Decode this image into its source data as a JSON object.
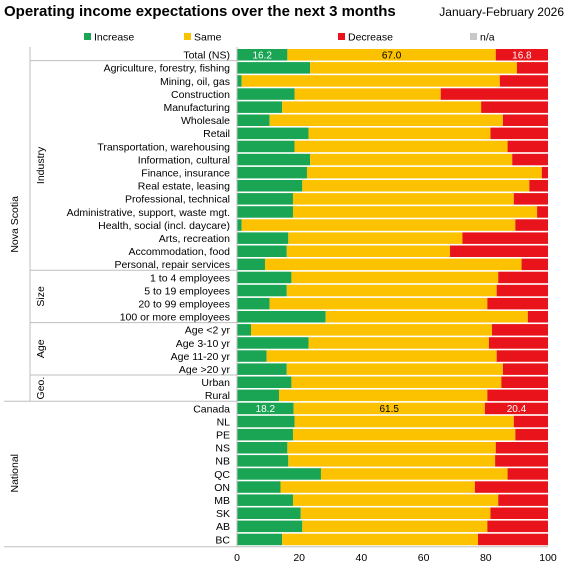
{
  "header": {
    "title": "Operating income expectations over the next 3 months",
    "period": "January-February  2026"
  },
  "chart_data": {
    "type": "bar",
    "orientation": "horizontal",
    "stacked": true,
    "xlim": [
      0,
      100
    ],
    "xticks": [
      "0",
      "20",
      "40",
      "60",
      "80",
      "100"
    ],
    "legend_position": "top",
    "colors": {
      "Increase": "#1aa555",
      "Same": "#fcc200",
      "Decrease": "#e8131b",
      "n/a": "#c8c8c8"
    },
    "legend": [
      {
        "name": "Increase",
        "color": "#1aa555"
      },
      {
        "name": "Same",
        "color": "#fcc200"
      },
      {
        "name": "Decrease",
        "color": "#e8131b"
      },
      {
        "name": "n/a",
        "color": "#c8c8c8"
      }
    ],
    "groups": [
      {
        "outer": "Nova Scotia",
        "inner": "",
        "from": 0,
        "to": 17
      },
      {
        "outer": "Nova Scotia",
        "inner": "Industry",
        "from": 1,
        "to": 17
      },
      {
        "outer": "Nova Scotia",
        "inner": "Size",
        "from": 17,
        "to": 21
      },
      {
        "outer": "Nova Scotia",
        "inner": "Age",
        "from": 21,
        "to": 25
      },
      {
        "outer": "Nova Scotia",
        "inner": "Geo.",
        "from": 25,
        "to": 27
      },
      {
        "outer": "National",
        "inner": "",
        "from": 27,
        "to": 38
      }
    ],
    "outer_groups": [
      {
        "name": "Nova Scotia",
        "from": 0,
        "to": 27
      },
      {
        "name": "National",
        "from": 27,
        "to": 38
      }
    ],
    "inner_groups": [
      {
        "name": "Industry",
        "from": 1,
        "to": 17
      },
      {
        "name": "Size",
        "from": 17,
        "to": 21
      },
      {
        "name": "Age",
        "from": 21,
        "to": 25
      },
      {
        "name": "Geo.",
        "from": 25,
        "to": 27
      }
    ],
    "rows": [
      {
        "label": "Total (NS)",
        "increase": 16.2,
        "same": 67.0,
        "decrease": 16.8,
        "labels": [
          "16.2",
          "67.0",
          "16.8"
        ]
      },
      {
        "label": "Agriculture, forestry, fishing",
        "increase": 23.5,
        "same": 66.5,
        "decrease": 10.0
      },
      {
        "label": "Mining, oil, gas",
        "increase": 1.5,
        "same": 83.0,
        "decrease": 15.5
      },
      {
        "label": "Construction",
        "increase": 18.5,
        "same": 47.0,
        "decrease": 34.5
      },
      {
        "label": "Manufacturing",
        "increase": 14.5,
        "same": 64.0,
        "decrease": 21.5
      },
      {
        "label": "Wholesale",
        "increase": 10.5,
        "same": 75.0,
        "decrease": 14.5
      },
      {
        "label": "Retail",
        "increase": 23.0,
        "same": 58.5,
        "decrease": 18.5
      },
      {
        "label": "Transportation, warehousing",
        "increase": 18.5,
        "same": 68.5,
        "decrease": 13.0
      },
      {
        "label": "Information, cultural",
        "increase": 23.5,
        "same": 65.0,
        "decrease": 11.5
      },
      {
        "label": "Finance, insurance",
        "increase": 22.5,
        "same": 75.5,
        "decrease": 2.0
      },
      {
        "label": "Real estate, leasing",
        "increase": 21.0,
        "same": 73.0,
        "decrease": 6.0
      },
      {
        "label": "Professional, technical",
        "increase": 18.0,
        "same": 71.0,
        "decrease": 11.0
      },
      {
        "label": "Administrative, support, waste mgt.",
        "increase": 18.0,
        "same": 78.5,
        "decrease": 3.5
      },
      {
        "label": "Health, social (incl. daycare)",
        "increase": 1.5,
        "same": 88.0,
        "decrease": 10.5
      },
      {
        "label": "Arts, recreation",
        "increase": 16.5,
        "same": 56.0,
        "decrease": 27.5
      },
      {
        "label": "Accommodation, food",
        "increase": 16.0,
        "same": 52.5,
        "decrease": 31.5
      },
      {
        "label": "Personal, repair services",
        "increase": 9.0,
        "same": 82.5,
        "decrease": 8.5
      },
      {
        "label": "1 to 4 employees",
        "increase": 17.5,
        "same": 66.5,
        "decrease": 16.0
      },
      {
        "label": "5 to 19 employees",
        "increase": 16.0,
        "same": 67.5,
        "decrease": 16.5
      },
      {
        "label": "20 to 99 employees",
        "increase": 10.5,
        "same": 70.0,
        "decrease": 19.5
      },
      {
        "label": "100 or more employees",
        "increase": 28.5,
        "same": 65.0,
        "decrease": 6.5
      },
      {
        "label": "Age <2 yr",
        "increase": 4.5,
        "same": 77.5,
        "decrease": 18.0
      },
      {
        "label": "Age 3-10 yr",
        "increase": 23.0,
        "same": 58.0,
        "decrease": 19.0
      },
      {
        "label": "Age 11-20 yr",
        "increase": 9.5,
        "same": 74.0,
        "decrease": 16.5
      },
      {
        "label": "Age >20 yr",
        "increase": 16.0,
        "same": 69.5,
        "decrease": 14.5
      },
      {
        "label": "Urban",
        "increase": 17.5,
        "same": 67.5,
        "decrease": 15.0
      },
      {
        "label": "Rural",
        "increase": 13.5,
        "same": 67.0,
        "decrease": 19.5
      },
      {
        "label": "Canada",
        "increase": 18.2,
        "same": 61.5,
        "decrease": 20.4,
        "labels": [
          "18.2",
          "61.5",
          "20.4"
        ]
      },
      {
        "label": "NL",
        "increase": 18.5,
        "same": 70.5,
        "decrease": 11.0
      },
      {
        "label": "PE",
        "increase": 18.0,
        "same": 71.5,
        "decrease": 10.5
      },
      {
        "label": "NS",
        "increase": 16.2,
        "same": 67.0,
        "decrease": 16.8
      },
      {
        "label": "NB",
        "increase": 16.5,
        "same": 66.5,
        "decrease": 17.0
      },
      {
        "label": "QC",
        "increase": 27.0,
        "same": 60.0,
        "decrease": 13.0
      },
      {
        "label": "ON",
        "increase": 14.0,
        "same": 62.5,
        "decrease": 23.5
      },
      {
        "label": "MB",
        "increase": 18.0,
        "same": 66.0,
        "decrease": 16.0
      },
      {
        "label": "SK",
        "increase": 20.5,
        "same": 61.0,
        "decrease": 18.5
      },
      {
        "label": "AB",
        "increase": 21.0,
        "same": 59.5,
        "decrease": 19.5
      },
      {
        "label": "BC",
        "increase": 14.5,
        "same": 63.0,
        "decrease": 22.5
      }
    ]
  }
}
